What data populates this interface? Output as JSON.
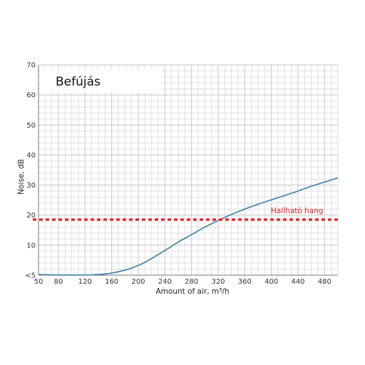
{
  "chart_data": {
    "type": "line",
    "title": "Befújás",
    "xlabel": "Amount of air, m³/h",
    "ylabel": "Noise, dB",
    "xlim": [
      50,
      500
    ],
    "ylim": [
      0,
      70
    ],
    "x_ticks": [
      50,
      80,
      120,
      160,
      200,
      240,
      280,
      320,
      360,
      400,
      440,
      480
    ],
    "y_ticks": [
      {
        "value": 0,
        "label": "<5"
      },
      {
        "value": 10,
        "label": "10"
      },
      {
        "value": 20,
        "label": "20"
      },
      {
        "value": 30,
        "label": "30"
      },
      {
        "value": 40,
        "label": "40"
      },
      {
        "value": 50,
        "label": "50"
      },
      {
        "value": 60,
        "label": "60"
      },
      {
        "value": 70,
        "label": "70"
      }
    ],
    "grid": true,
    "series": [
      {
        "name": "",
        "color": "#3a7ea5",
        "points": [
          [
            50,
            0.2
          ],
          [
            70,
            0.1
          ],
          [
            90,
            0.05
          ],
          [
            110,
            0.05
          ],
          [
            130,
            0.1
          ],
          [
            150,
            0.4
          ],
          [
            165,
            0.9
          ],
          [
            180,
            1.7
          ],
          [
            195,
            2.8
          ],
          [
            210,
            4.3
          ],
          [
            225,
            6.2
          ],
          [
            240,
            8.2
          ],
          [
            260,
            11.0
          ],
          [
            280,
            13.5
          ],
          [
            300,
            16.0
          ],
          [
            320,
            18.2
          ],
          [
            340,
            20.2
          ],
          [
            360,
            22.0
          ],
          [
            380,
            23.6
          ],
          [
            400,
            25.1
          ],
          [
            420,
            26.5
          ],
          [
            440,
            28.0
          ],
          [
            460,
            29.6
          ],
          [
            480,
            31.0
          ],
          [
            500,
            32.4
          ]
        ]
      }
    ],
    "annotations": [
      {
        "type": "hline",
        "y": 18.5,
        "label": "Hallható hang",
        "color": "#e5212a",
        "style": "dashed"
      }
    ]
  }
}
